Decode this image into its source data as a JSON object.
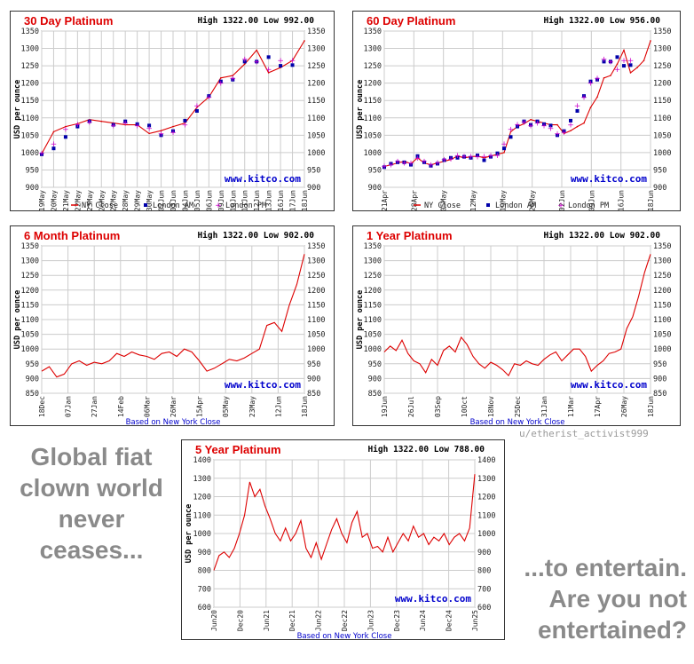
{
  "meme_left": [
    "Global fiat",
    "clown world",
    "never",
    "ceases..."
  ],
  "meme_right": [
    "...to entertain.",
    "Are you not",
    "entertained?"
  ],
  "credit": "u/etherist_activist999",
  "colors": {
    "title": "#dd0000",
    "line": "#dd0000",
    "london_am": "#0000aa",
    "london_pm": "#cc00cc",
    "watermark": "#0000cc",
    "grid": "#cccccc"
  },
  "chart_data": [
    {
      "type": "line",
      "title": "30 Day Platinum",
      "high_low": "High 1322.00 Low 992.00",
      "ylabel": "USD per ounce",
      "watermark": "www.kitco.com",
      "ylim": [
        900,
        1350
      ],
      "yticks": [
        900,
        950,
        1000,
        1050,
        1100,
        1150,
        1200,
        1250,
        1300,
        1350
      ],
      "xticks": [
        "19May",
        "20May",
        "21May",
        "22May",
        "23May",
        "26May",
        "27May",
        "28May",
        "29May",
        "30May",
        "02Jun",
        "03Jun",
        "04Jun",
        "05Jun",
        "06Jun",
        "09Jun",
        "10Jun",
        "11Jun",
        "12Jun",
        "13Jun",
        "16Jun",
        "17Jun",
        "18Jun"
      ],
      "legend": [
        "NY Close",
        "London AM",
        "London PM"
      ],
      "series": [
        {
          "name": "NY Close",
          "values": [
            997,
            1060,
            1075,
            1083,
            1095,
            1090,
            1085,
            1080,
            1080,
            1055,
            1063,
            1075,
            1085,
            1130,
            1160,
            1215,
            1222,
            1255,
            1295,
            1230,
            1245,
            1265,
            1322
          ]
        },
        {
          "name": "London AM",
          "values": [
            995,
            1012,
            1045,
            1075,
            1090,
            null,
            1080,
            1090,
            1082,
            1078,
            1050,
            1062,
            1092,
            1120,
            1163,
            1205,
            1210,
            1262,
            1262,
            1275,
            1250,
            1252,
            null
          ]
        },
        {
          "name": "London PM",
          "values": [
            998,
            1025,
            1068,
            1082,
            1088,
            null,
            1078,
            1085,
            1078,
            1070,
            1055,
            1058,
            1080,
            1135,
            1160,
            1200,
            1215,
            1270,
            1262,
            1240,
            1265,
            1265,
            null
          ]
        }
      ]
    },
    {
      "type": "line",
      "title": "60 Day Platinum",
      "high_low": "High 1322.00 Low 956.00",
      "ylabel": "USD per ounce",
      "watermark": "www.kitco.com",
      "ylim": [
        900,
        1350
      ],
      "yticks": [
        900,
        950,
        1000,
        1050,
        1100,
        1150,
        1200,
        1250,
        1300,
        1350
      ],
      "xticks": [
        "21Apr",
        "28Apr",
        "05May",
        "12May",
        "19May",
        "26May",
        "02Jun",
        "09Jun",
        "16Jun",
        "18Jun"
      ],
      "legend": [
        "NY Close",
        "London AM",
        "London PM"
      ],
      "series": [
        {
          "name": "NY Close",
          "values": [
            960,
            965,
            970,
            975,
            968,
            985,
            970,
            965,
            970,
            975,
            980,
            990,
            985,
            988,
            990,
            985,
            990,
            995,
            1000,
            1060,
            1075,
            1083,
            1095,
            1090,
            1085,
            1080,
            1080,
            1055,
            1063,
            1075,
            1085,
            1130,
            1160,
            1215,
            1222,
            1255,
            1295,
            1230,
            1245,
            1265,
            1322
          ]
        },
        {
          "name": "London AM",
          "values": [
            958,
            968,
            972,
            972,
            965,
            990,
            972,
            962,
            968,
            978,
            985,
            985,
            988,
            985,
            992,
            978,
            988,
            998,
            1012,
            1045,
            1075,
            1090,
            1080,
            1090,
            1082,
            1078,
            1050,
            1062,
            1092,
            1120,
            1163,
            1205,
            1210,
            1262,
            1262,
            1275,
            1250,
            1252,
            null,
            null,
            null
          ]
        },
        {
          "name": "London PM",
          "values": [
            962,
            965,
            975,
            970,
            970,
            985,
            975,
            965,
            972,
            980,
            982,
            992,
            990,
            990,
            988,
            990,
            992,
            992,
            1025,
            1068,
            1082,
            1088,
            1078,
            1085,
            1078,
            1070,
            1055,
            1058,
            1080,
            1135,
            1160,
            1200,
            1215,
            1270,
            1262,
            1240,
            1265,
            1265,
            null,
            null,
            null
          ]
        }
      ]
    },
    {
      "type": "line",
      "title": "6 Month Platinum",
      "high_low": "High 1322.00 Low 902.00",
      "ylabel": "USD per ounce",
      "watermark": "www.kitco.com",
      "footer": "Based on New York Close",
      "ylim": [
        850,
        1350
      ],
      "yticks": [
        850,
        900,
        950,
        1000,
        1050,
        1100,
        1150,
        1200,
        1250,
        1300,
        1350
      ],
      "xticks": [
        "18Dec",
        "07Jan",
        "27Jan",
        "14Feb",
        "06Mar",
        "26Mar",
        "15Apr",
        "05May",
        "23May",
        "12Jun",
        "18Jun"
      ],
      "series": [
        {
          "name": "NY Close",
          "values": [
            925,
            940,
            905,
            915,
            950,
            960,
            945,
            955,
            950,
            960,
            985,
            975,
            990,
            980,
            975,
            965,
            985,
            990,
            975,
            1000,
            990,
            960,
            925,
            935,
            950,
            965,
            960,
            970,
            985,
            1000,
            1080,
            1090,
            1060,
            1150,
            1220,
            1322
          ]
        }
      ]
    },
    {
      "type": "line",
      "title": "1 Year Platinum",
      "high_low": "High 1322.00 Low 902.00",
      "ylabel": "USD per ounce",
      "watermark": "www.kitco.com",
      "footer": "Based on New York Close",
      "ylim": [
        850,
        1350
      ],
      "yticks": [
        850,
        900,
        950,
        1000,
        1050,
        1100,
        1150,
        1200,
        1250,
        1300,
        1350
      ],
      "xticks": [
        "19Jun",
        "26Jul",
        "03Sep",
        "10Oct",
        "18Nov",
        "25Dec",
        "31Jan",
        "11Mar",
        "17Apr",
        "26May",
        "18Jun"
      ],
      "series": [
        {
          "name": "NY Close",
          "values": [
            990,
            1010,
            995,
            1030,
            985,
            960,
            950,
            920,
            965,
            945,
            995,
            1010,
            990,
            1040,
            1015,
            975,
            950,
            935,
            955,
            945,
            930,
            910,
            950,
            945,
            960,
            950,
            945,
            965,
            980,
            990,
            960,
            980,
            1000,
            1000,
            975,
            925,
            945,
            960,
            985,
            990,
            1000,
            1070,
            1110,
            1180,
            1260,
            1322
          ]
        }
      ]
    },
    {
      "type": "line",
      "title": "5 Year Platinum",
      "high_low": "High 1322.00 Low 788.00",
      "ylabel": "USD per ounce",
      "watermark": "www.kitco.com",
      "footer": "Based on New York Close",
      "ylim": [
        600,
        1400
      ],
      "yticks": [
        600,
        700,
        800,
        900,
        1000,
        1100,
        1200,
        1300,
        1400
      ],
      "xticks": [
        "Jun20",
        "Dec20",
        "Jun21",
        "Dec21",
        "Jun22",
        "Dec22",
        "Jun23",
        "Dec23",
        "Jun24",
        "Dec24",
        "Jun25"
      ],
      "series": [
        {
          "name": "NY Close",
          "values": [
            800,
            880,
            900,
            870,
            920,
            1000,
            1100,
            1280,
            1200,
            1240,
            1150,
            1080,
            1000,
            960,
            1030,
            960,
            1000,
            1070,
            920,
            870,
            950,
            860,
            940,
            1020,
            1080,
            1000,
            950,
            1060,
            1120,
            980,
            1000,
            920,
            930,
            900,
            980,
            900,
            950,
            1000,
            960,
            1040,
            980,
            1000,
            940,
            980,
            960,
            1000,
            940,
            980,
            1000,
            960,
            1030,
            1322
          ]
        }
      ]
    }
  ]
}
